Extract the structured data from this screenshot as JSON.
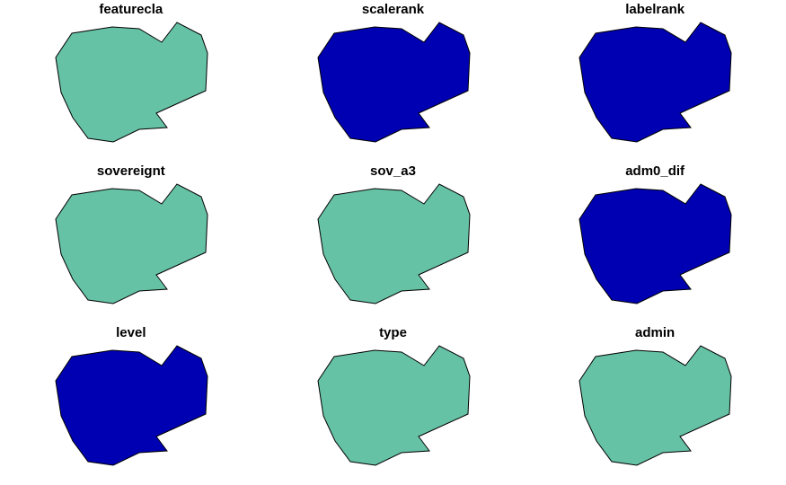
{
  "colors": {
    "category_a": "#66C2A5",
    "category_b": "#0000B3",
    "outline": "#000000",
    "background": "#FFFFFF"
  },
  "panels": [
    {
      "title": "featurecla",
      "fill": "#66C2A5"
    },
    {
      "title": "scalerank",
      "fill": "#0000B3"
    },
    {
      "title": "labelrank",
      "fill": "#0000B3"
    },
    {
      "title": "sovereignt",
      "fill": "#66C2A5"
    },
    {
      "title": "sov_a3",
      "fill": "#66C2A5"
    },
    {
      "title": "adm0_dif",
      "fill": "#0000B3"
    },
    {
      "title": "level",
      "fill": "#0000B3"
    },
    {
      "title": "type",
      "fill": "#66C2A5"
    },
    {
      "title": "admin",
      "fill": "#66C2A5"
    }
  ]
}
